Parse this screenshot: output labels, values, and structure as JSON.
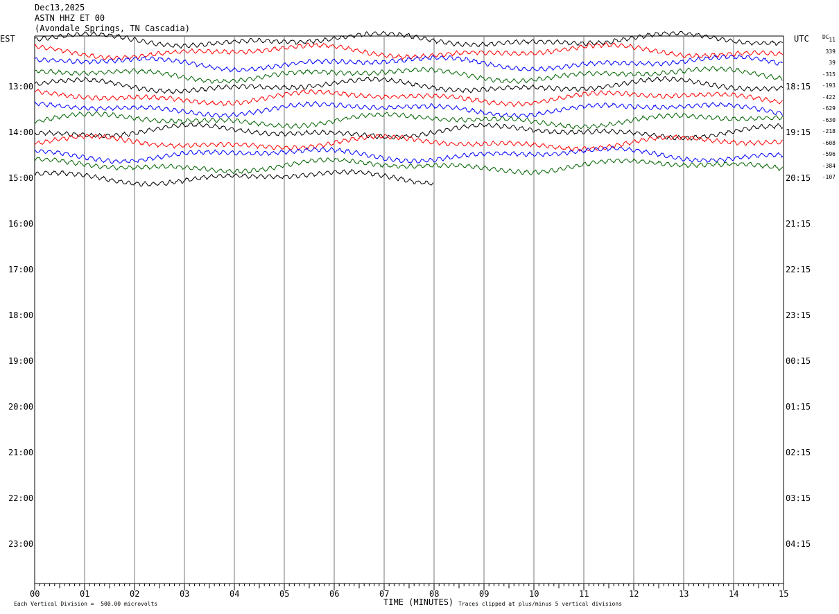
{
  "header": {
    "date": "Dec13,2025",
    "station": "ASTN HHZ ET 00",
    "location": "(Avondale Springs, TN Cascadia)"
  },
  "chart_data": {
    "type": "line",
    "left_timezone": "EST",
    "right_timezone": "UTC",
    "dc_label": "DC",
    "left_hour_labels": [
      "13:00",
      "14:00",
      "15:00",
      "16:00",
      "17:00",
      "18:00",
      "19:00",
      "20:00",
      "21:00",
      "22:00",
      "23:00"
    ],
    "right_hour_labels": [
      "18:15",
      "19:15",
      "20:15",
      "21:15",
      "22:15",
      "23:15",
      "00:15",
      "01:15",
      "02:15",
      "03:15",
      "04:15"
    ],
    "x_tick_labels": [
      "00",
      "01",
      "02",
      "03",
      "04",
      "05",
      "06",
      "07",
      "08",
      "09",
      "10",
      "11",
      "12",
      "13",
      "14",
      "15"
    ],
    "xlabel": "TIME (MINUTES)",
    "xlim": [
      0,
      15
    ],
    "trace_colors": [
      "#000000",
      "#ff0000",
      "#0000ff",
      "#006400"
    ],
    "dc_offsets": [
      "11",
      "339",
      "39",
      "-315",
      "-193",
      "-422",
      "-629",
      "-630",
      "-218",
      "-608",
      "-596",
      "-384",
      "-107"
    ],
    "scale_note": "Each Vertical Division =  500.00 microvolts",
    "clip_note": "Traces clipped at plus/minus 5 vertical divisions"
  }
}
